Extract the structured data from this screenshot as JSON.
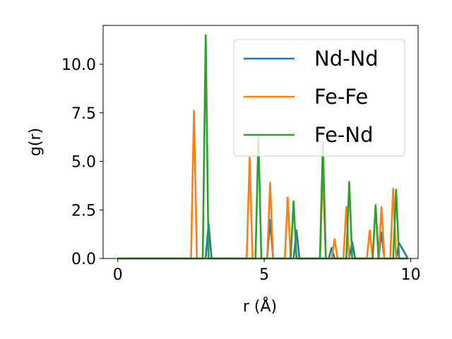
{
  "chart_data": {
    "type": "line",
    "title": "",
    "xlabel": "r (Å)",
    "ylabel": "g(r)",
    "xlim": [
      -0.5,
      10.25
    ],
    "ylim": [
      0,
      12.0
    ],
    "xticks": [
      0,
      5,
      10
    ],
    "xtick_labels": [
      "0",
      "5",
      "10"
    ],
    "yticks": [
      0.0,
      2.5,
      5.0,
      7.5,
      10.0
    ],
    "ytick_labels": [
      "0.0",
      "2.5",
      "5.0",
      "7.5",
      "10.0"
    ],
    "grid": false,
    "legend_position": "top-right",
    "series": [
      {
        "name": "Nd-Nd",
        "color": "#1f77b4",
        "x": [
          0.0,
          3.0,
          3.1,
          3.2,
          5.1,
          5.2,
          5.3,
          5.9,
          6.0,
          6.1,
          6.2,
          7.2,
          7.3,
          7.4,
          7.9,
          8.0,
          8.1,
          8.9,
          9.0,
          9.1,
          9.5,
          9.6,
          9.9
        ],
        "y": [
          0.0,
          0.0,
          1.8,
          0.0,
          0.0,
          2.0,
          0.0,
          0.0,
          0.0,
          1.45,
          0.0,
          0.0,
          0.55,
          0.0,
          0.0,
          0.85,
          0.0,
          0.0,
          1.35,
          0.0,
          0.0,
          0.8,
          0.0
        ]
      },
      {
        "name": "Fe-Fe",
        "color": "#ff7f0e",
        "x": [
          0.0,
          2.5,
          2.6,
          2.7,
          4.4,
          4.5,
          4.6,
          5.1,
          5.2,
          5.3,
          5.7,
          5.8,
          5.9,
          6.9,
          7.0,
          7.1,
          7.3,
          7.4,
          7.5,
          7.7,
          7.8,
          7.9,
          8.5,
          8.6,
          8.7,
          8.9,
          9.0,
          9.1,
          9.3,
          9.4,
          9.5,
          9.9
        ],
        "y": [
          0.0,
          0.0,
          7.6,
          0.0,
          0.0,
          5.2,
          0.0,
          0.0,
          3.9,
          0.0,
          0.0,
          3.15,
          0.0,
          0.0,
          4.45,
          0.0,
          0.0,
          1.0,
          0.0,
          0.0,
          2.65,
          0.0,
          0.0,
          1.45,
          0.0,
          0.0,
          2.65,
          0.0,
          0.0,
          3.6,
          0.0,
          0.0
        ]
      },
      {
        "name": "Fe-Nd",
        "color": "#2ca02c",
        "x": [
          0.0,
          2.9,
          3.0,
          3.1,
          4.7,
          4.8,
          4.9,
          5.9,
          6.0,
          6.1,
          6.9,
          7.0,
          7.1,
          7.8,
          7.9,
          8.0,
          8.7,
          8.8,
          8.9,
          9.4,
          9.5,
          9.6,
          9.9
        ],
        "y": [
          0.0,
          0.0,
          11.5,
          0.0,
          0.0,
          6.3,
          0.0,
          0.0,
          2.95,
          0.0,
          0.0,
          6.0,
          0.0,
          0.0,
          3.95,
          0.0,
          0.0,
          2.75,
          0.0,
          0.0,
          3.55,
          0.0,
          0.0
        ]
      }
    ]
  }
}
